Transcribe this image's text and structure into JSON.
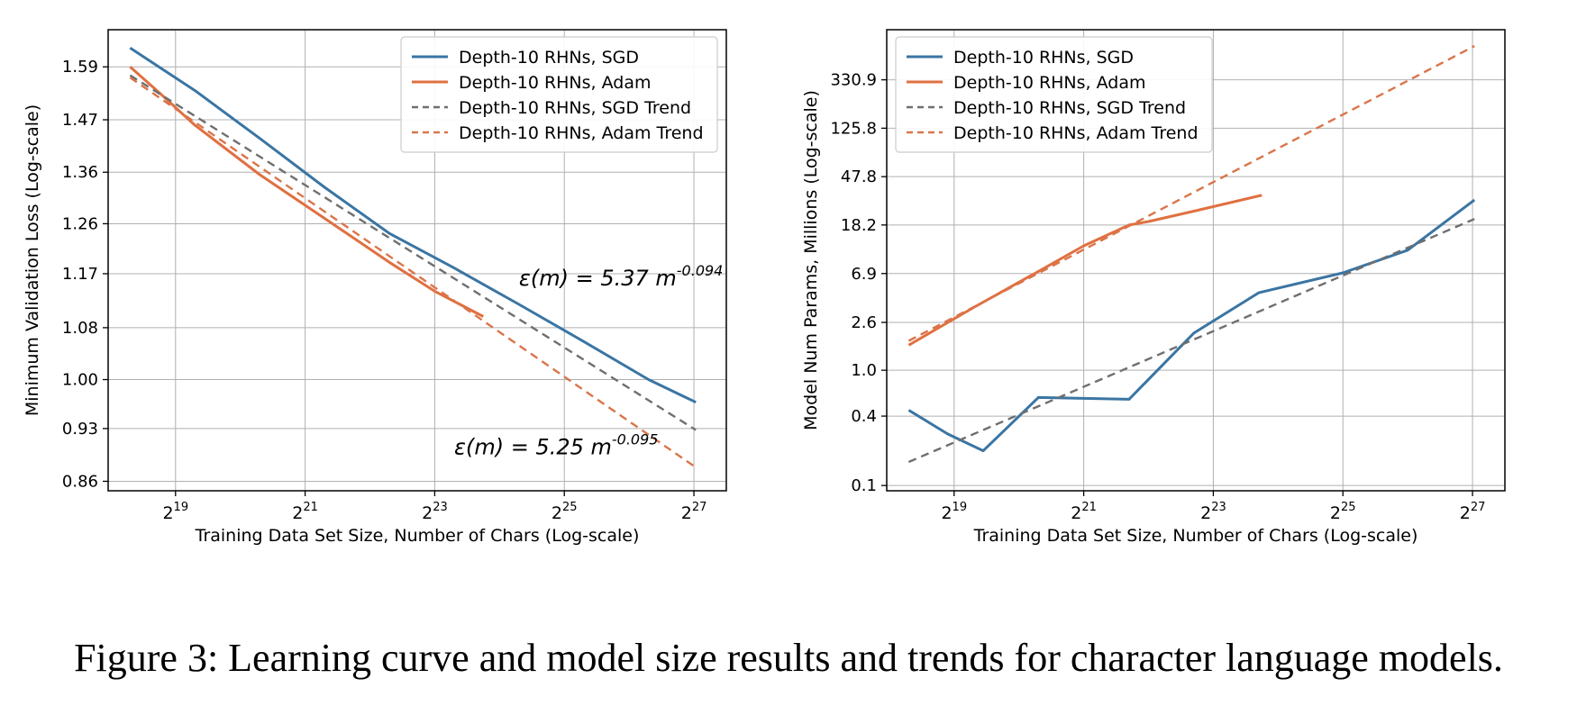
{
  "caption": "Figure 3: Learning curve and model size results and trends for character language models.",
  "colors": {
    "sgd": "#3a75a3",
    "adam": "#e07040",
    "sgd_trend": "#6f6f6f",
    "adam_trend": "#d9754a"
  },
  "chart_data": [
    {
      "type": "line",
      "xlabel": "Training Data Set Size, Number of Chars (Log-scale)",
      "ylabel": "Minimum Validation Loss (Log-scale)",
      "x_scale": "log2",
      "y_scale": "log",
      "x_ticks": [
        19,
        21,
        23,
        25,
        27
      ],
      "x_tick_base": "2",
      "xlim_log2": [
        17.96,
        27.5
      ],
      "y_ticks": [
        "0.86",
        "0.93",
        "1.00",
        "1.08",
        "1.17",
        "1.26",
        "1.36",
        "1.47",
        "1.59"
      ],
      "ylim": [
        0.848,
        1.68
      ],
      "grid": true,
      "legend_position": "top-right",
      "annotations": [
        {
          "text": "ε(m) = 5.37 m",
          "exponent": "-0.094",
          "x_log2": 24.3,
          "y": 1.15
        },
        {
          "text": "ε(m) = 5.25 m",
          "exponent": "-0.095",
          "x_log2": 23.3,
          "y": 0.895
        }
      ],
      "series": [
        {
          "name": "Depth-10 RHNs, SGD",
          "style": "solid",
          "color": "sgd",
          "x_log2": [
            18.3,
            19.3,
            20.3,
            21.3,
            22.3,
            23.3,
            24.3,
            25.3,
            26.3,
            27.03
          ],
          "y": [
            1.635,
            1.535,
            1.43,
            1.33,
            1.242,
            1.18,
            1.118,
            1.058,
            1.0,
            0.967
          ]
        },
        {
          "name": "Depth-10 RHNs, Adam",
          "style": "solid",
          "color": "adam",
          "x_log2": [
            18.3,
            18.75,
            19.3,
            20.3,
            21.3,
            22.3,
            23.0,
            23.75
          ],
          "y": [
            1.59,
            1.53,
            1.458,
            1.355,
            1.27,
            1.19,
            1.14,
            1.098
          ]
        },
        {
          "name": "Depth-10 RHNs, SGD Trend",
          "style": "dashed",
          "color": "sgd_trend",
          "x_log2": [
            18.3,
            27.03
          ],
          "y": [
            1.57,
            0.928
          ]
        },
        {
          "name": "Depth-10 RHNs, Adam Trend",
          "style": "dashed",
          "color": "adam_trend",
          "x_log2": [
            18.3,
            27.03
          ],
          "y": [
            1.565,
            0.878
          ]
        }
      ]
    },
    {
      "type": "line",
      "xlabel": "Training Data Set Size, Number of Chars (Log-scale)",
      "ylabel": "Model Num Params, Millions (Log-scale)",
      "x_scale": "log2",
      "y_scale": "log",
      "x_ticks": [
        19,
        21,
        23,
        25,
        27
      ],
      "x_tick_base": "2",
      "xlim_log2": [
        17.96,
        27.5
      ],
      "y_ticks": [
        "0.1",
        "0.4",
        "1.0",
        "2.6",
        "6.9",
        "18.2",
        "47.8",
        "125.8",
        "330.9"
      ],
      "ylim": [
        0.09,
        900
      ],
      "grid": true,
      "legend_position": "top-left",
      "annotations": [],
      "series": [
        {
          "name": "Depth-10 RHNs, SGD",
          "style": "solid",
          "color": "sgd",
          "x_log2": [
            18.3,
            18.9,
            19.45,
            20.3,
            21.7,
            22.7,
            23.7,
            25.0,
            26.0,
            27.03
          ],
          "y": [
            0.45,
            0.28,
            0.2,
            0.58,
            0.56,
            2.1,
            4.7,
            7.0,
            11.0,
            30.0
          ]
        },
        {
          "name": "Depth-10 RHNs, Adam",
          "style": "solid",
          "color": "adam",
          "x_log2": [
            18.3,
            19.3,
            20.3,
            21.0,
            21.7,
            22.0,
            22.7,
            23.75
          ],
          "y": [
            1.65,
            3.5,
            7.2,
            12.0,
            18.2,
            19.5,
            24.0,
            33.0
          ]
        },
        {
          "name": "Depth-10 RHNs, SGD Trend",
          "style": "dashed",
          "color": "sgd_trend",
          "x_log2": [
            18.3,
            27.03
          ],
          "y": [
            0.16,
            20.5
          ]
        },
        {
          "name": "Depth-10 RHNs, Adam Trend",
          "style": "dashed",
          "color": "adam_trend",
          "x_log2": [
            18.3,
            27.03
          ],
          "y": [
            1.8,
            650
          ]
        }
      ]
    }
  ]
}
